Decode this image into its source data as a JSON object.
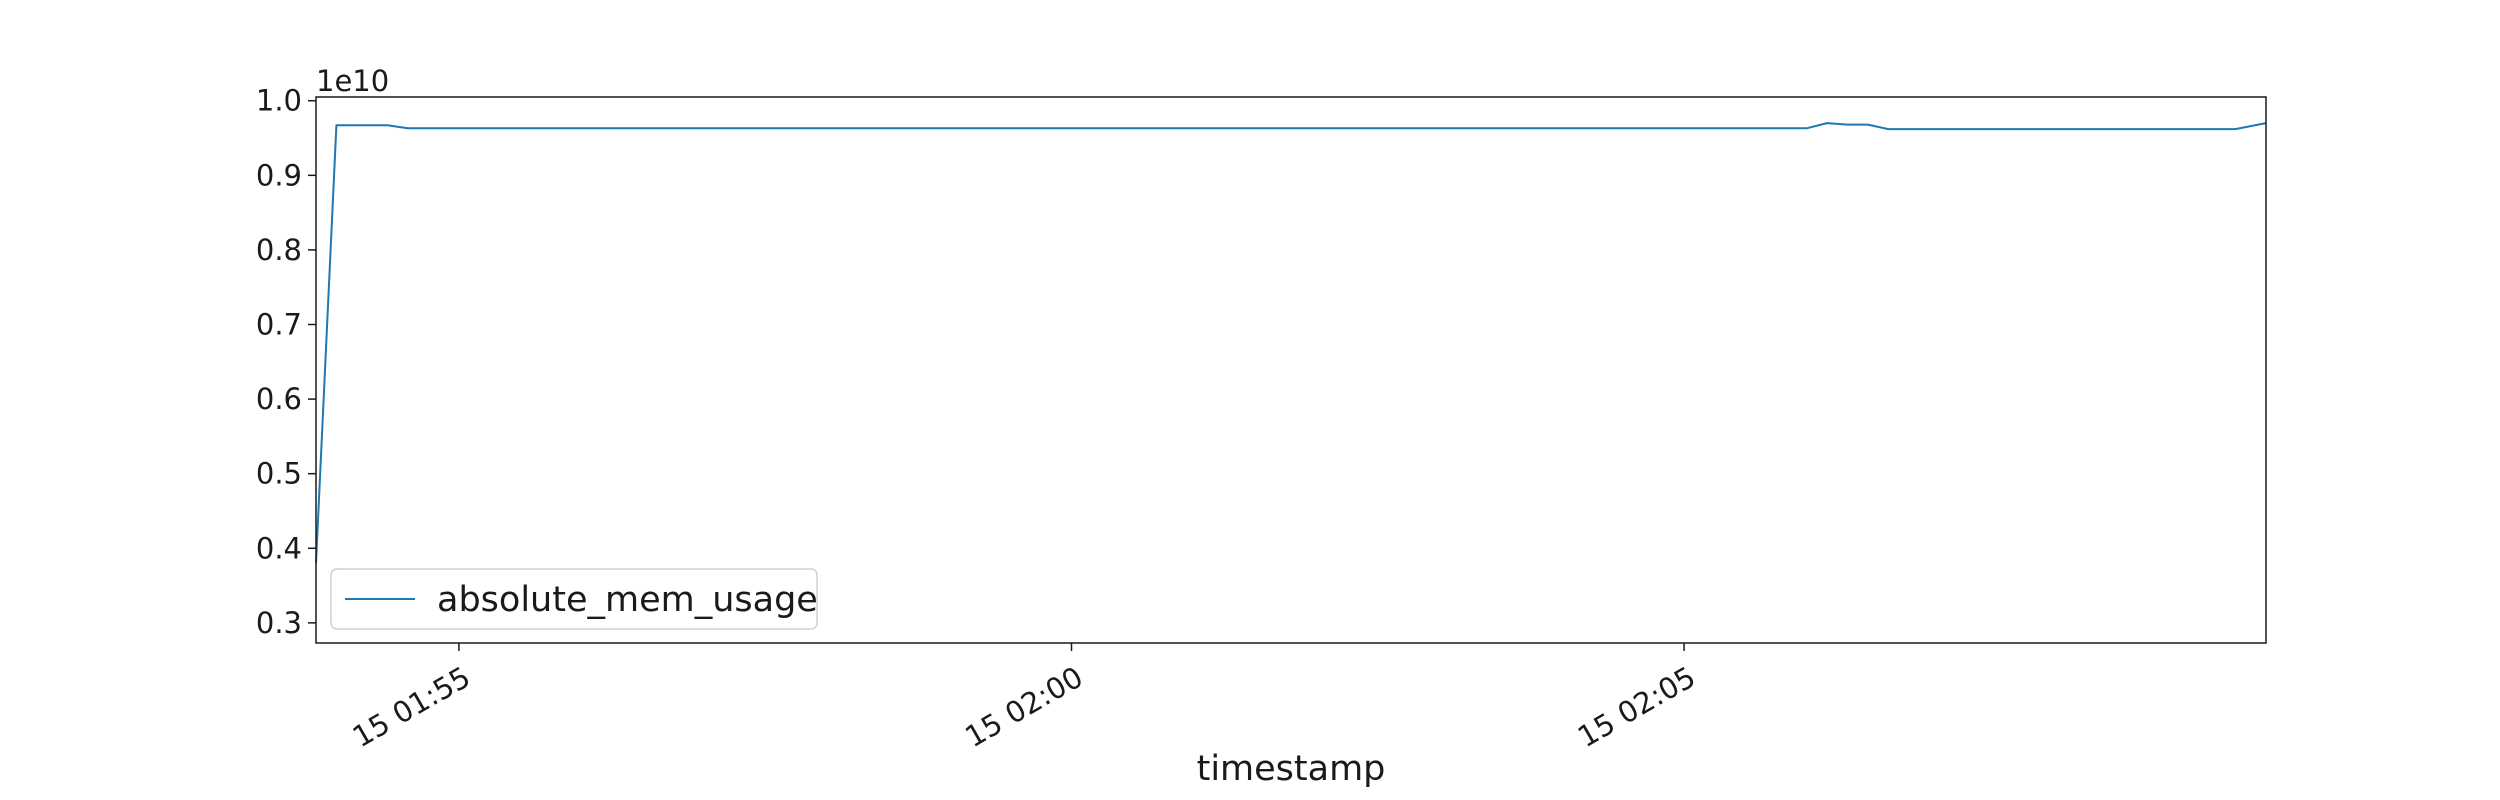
{
  "chart_data": {
    "type": "line",
    "title": "",
    "xlabel": "timestamp",
    "ylabel": "",
    "y_offset_label": "1e10",
    "y_scale": 10000000000.0,
    "xlim": [
      "2024-01-15T01:53:50",
      "2024-01-15T02:09:45"
    ],
    "ylim": [
      2730000000.0,
      10050000000.0
    ],
    "x_ticks": [
      {
        "value": "2024-01-15T01:55:00",
        "label": "15 01:55"
      },
      {
        "value": "2024-01-15T02:00:00",
        "label": "15 02:00"
      },
      {
        "value": "2024-01-15T02:05:00",
        "label": "15 02:05"
      }
    ],
    "y_ticks": [
      {
        "value": 3000000000.0,
        "label": "0.3"
      },
      {
        "value": 4000000000.0,
        "label": "0.4"
      },
      {
        "value": 5000000000.0,
        "label": "0.5"
      },
      {
        "value": 6000000000.0,
        "label": "0.6"
      },
      {
        "value": 7000000000.0,
        "label": "0.7"
      },
      {
        "value": 8000000000.0,
        "label": "0.8"
      },
      {
        "value": 9000000000.0,
        "label": "0.9"
      },
      {
        "value": 10000000000.0,
        "label": "1.0"
      }
    ],
    "grid": false,
    "legend_position": "lower-left",
    "series": [
      {
        "name": "absolute_mem_usage",
        "color": "#1f77b4",
        "points": [
          [
            "2024-01-15T01:53:50",
            3800000000.0
          ],
          [
            "2024-01-15T01:54:00",
            9670000000.0
          ],
          [
            "2024-01-15T01:54:15",
            9670000000.0
          ],
          [
            "2024-01-15T01:54:25",
            9670000000.0
          ],
          [
            "2024-01-15T01:54:35",
            9630000000.0
          ],
          [
            "2024-01-15T01:55:00",
            9630000000.0
          ],
          [
            "2024-01-15T02:00:00",
            9630000000.0
          ],
          [
            "2024-01-15T02:05:00",
            9630000000.0
          ],
          [
            "2024-01-15T02:06:00",
            9630000000.0
          ],
          [
            "2024-01-15T02:06:10",
            9700000000.0
          ],
          [
            "2024-01-15T02:06:20",
            9680000000.0
          ],
          [
            "2024-01-15T02:06:30",
            9680000000.0
          ],
          [
            "2024-01-15T02:06:40",
            9620000000.0
          ],
          [
            "2024-01-15T02:07:00",
            9620000000.0
          ],
          [
            "2024-01-15T02:09:30",
            9620000000.0
          ],
          [
            "2024-01-15T02:09:45",
            9700000000.0
          ]
        ]
      }
    ]
  }
}
